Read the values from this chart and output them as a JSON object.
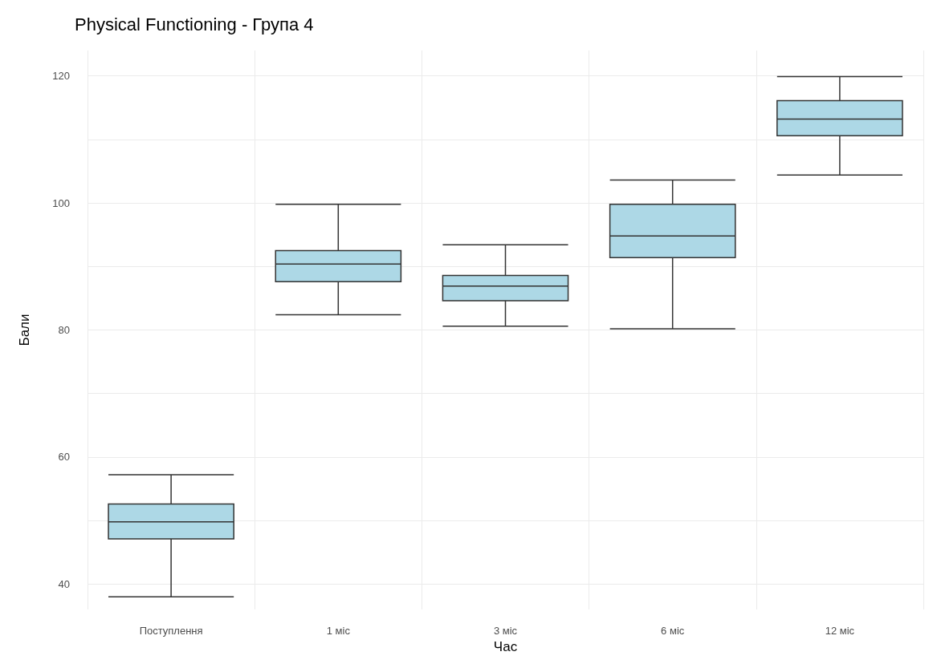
{
  "chart_data": {
    "type": "box",
    "title": "Physical Functioning - Група 4",
    "xlabel": "Час",
    "ylabel": "Бали",
    "categories": [
      "Поступлення",
      "1 міс",
      "3 міс",
      "6 міс",
      "12 міс"
    ],
    "color": "#add8e6",
    "boxes": [
      {
        "low": 38,
        "q1": 47.1,
        "median": 49.8,
        "q3": 52.6,
        "high": 57.2
      },
      {
        "low": 82.4,
        "q1": 87.6,
        "median": 90.4,
        "q3": 92.5,
        "high": 99.8
      },
      {
        "low": 80.6,
        "q1": 84.6,
        "median": 86.9,
        "q3": 88.6,
        "high": 93.4
      },
      {
        "low": 80.2,
        "q1": 91.4,
        "median": 94.8,
        "q3": 99.8,
        "high": 103.6
      },
      {
        "low": 104.4,
        "q1": 110.6,
        "median": 113.2,
        "q3": 116.1,
        "high": 119.9
      }
    ],
    "ylim": [
      36,
      124
    ],
    "yticks": [
      40,
      {
        "value": 50,
        "label": null
      },
      60,
      {
        "value": 70,
        "label": null
      },
      80,
      {
        "value": 90,
        "label": null
      },
      100,
      {
        "value": 110,
        "label": null
      },
      120
    ],
    "grid": true
  }
}
